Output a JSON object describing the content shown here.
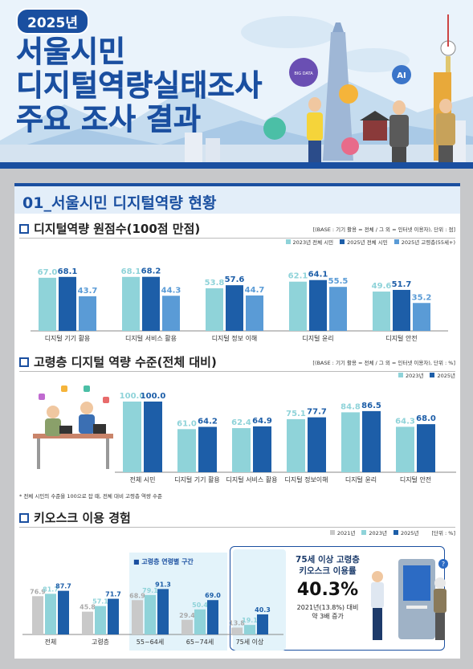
{
  "header": {
    "year_badge": "2025년",
    "title_line1": "서울시민",
    "title_line2": "디지털역량실태조사",
    "title_line3": "주요 조사 결과",
    "icon_labels": [
      "BIG DATA",
      "AI"
    ]
  },
  "section1": {
    "title": "01_서울시민 디지털역량 현황"
  },
  "chart1": {
    "subtitle": "디지털역량 원점수(100점 만점)",
    "base_note": "[(BASE : 기기 활용 = 전체 / 그 외 = 인터넷 이용자), 단위 : 점]",
    "colors": [
      "#8fd3d9",
      "#1d5ea8",
      "#5a9bd6"
    ]
  },
  "chart2": {
    "subtitle": "고령층 디지털 역량 수준(전체 대비)",
    "base_note": "[(BASE : 기기 활용 = 전체 / 그 외 = 인터넷 이용자), 단위 : %]",
    "footnote": "* 전체 시민의 수준을 100으로 잡 때, 전체 대비 고령층 역량 수준",
    "colors": [
      "#8fd3d9",
      "#1d5ea8"
    ]
  },
  "chart3": {
    "subtitle": "키오스크 이용 경험",
    "unit_note": "[단위 : %]",
    "age_group_label": "■ 고령층 연령별 구간",
    "colors": [
      "#c9c9c9",
      "#8fd3d9",
      "#1d5ea8"
    ]
  },
  "callout": {
    "line1": "75세 이상 고령층",
    "line2": "키오스크 이용률",
    "value": "40.3%",
    "line3": "2021년(13.8%) 대비",
    "line4": "약 3배 증가"
  },
  "chart_data": [
    {
      "type": "bar",
      "title": "디지털역량 원점수(100점 만점)",
      "categories": [
        "디지털 기기 활용",
        "디지털 서비스 활용",
        "디지털 정보 이해",
        "디지털 윤리",
        "디지털 안전"
      ],
      "series": [
        {
          "name": "2023년 전체 시민",
          "values": [
            67.0,
            68.1,
            53.8,
            62.1,
            49.6
          ]
        },
        {
          "name": "2025년 전체 시민",
          "values": [
            68.1,
            68.2,
            57.6,
            64.1,
            51.7
          ]
        },
        {
          "name": "2025년 고령층(55세+)",
          "values": [
            43.7,
            44.3,
            44.7,
            55.5,
            35.2
          ]
        }
      ],
      "ylim": [
        0,
        100
      ],
      "legend": "top-right"
    },
    {
      "type": "bar",
      "title": "고령층 디지털 역량 수준(전체 대비)",
      "categories": [
        "전체 시민",
        "디지털 기기 활용",
        "디지털 서비스 활용",
        "디지털 정보이해",
        "디지털 윤리",
        "디지털 안전"
      ],
      "series": [
        {
          "name": "2023년",
          "values": [
            100.0,
            61.0,
            62.4,
            75.1,
            84.8,
            64.3
          ]
        },
        {
          "name": "2025년",
          "values": [
            100.0,
            64.2,
            64.9,
            77.7,
            86.5,
            68.0
          ]
        }
      ],
      "ylim": [
        0,
        100
      ],
      "legend": "top-right"
    },
    {
      "type": "bar",
      "title": "키오스크 이용 경험",
      "categories": [
        "전체",
        "고령층",
        "55~64세",
        "65~74세",
        "75세 이상"
      ],
      "series": [
        {
          "name": "2021년",
          "values": [
            76.9,
            45.8,
            68.9,
            29.4,
            13.8
          ]
        },
        {
          "name": "2023년",
          "values": [
            81.7,
            57.1,
            79.1,
            50.4,
            19.1
          ]
        },
        {
          "name": "2025년",
          "values": [
            87.7,
            71.7,
            91.3,
            69.0,
            40.3
          ]
        }
      ],
      "ylim": [
        0,
        100
      ],
      "legend": "top-right"
    }
  ]
}
